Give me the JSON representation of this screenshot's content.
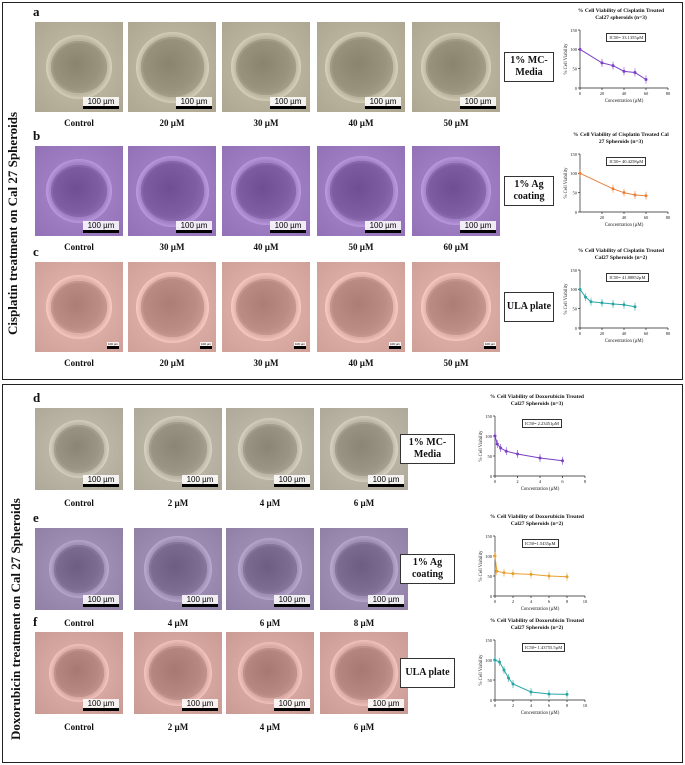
{
  "section1": {
    "title": "Cisplatin treatment on Cal 27 Spheroids",
    "rows": [
      {
        "letter": "a",
        "condition": "1% MC- Media",
        "tint": "#b7b09a",
        "labels": [
          "Control",
          "20 µM",
          "30 µM",
          "40 µM",
          "50 µM"
        ],
        "scale": "100 µm",
        "plot": {
          "title": "% Cell Viability of Cisplatin Treated Cal27 spheroids (n=3)",
          "ic50": "IC50= 33.1355µM",
          "xlabel": "Concentration (µM)",
          "ylabel": "% Cell Viability",
          "color": "#7a3fc4",
          "xticks": [
            0,
            20,
            40,
            60,
            80
          ],
          "yticks": [
            0,
            50,
            100,
            150
          ],
          "xlim": [
            0,
            80
          ],
          "ylim": [
            0,
            150
          ],
          "points": [
            [
              0,
              100
            ],
            [
              20,
              65
            ],
            [
              30,
              58
            ],
            [
              40,
              43
            ],
            [
              50,
              40
            ],
            [
              60,
              22
            ]
          ]
        }
      },
      {
        "letter": "b",
        "condition": "1% Ag coating",
        "tint": "#9c7bc0",
        "labels": [
          "Control",
          "30 µM",
          "40 µM",
          "50 µM",
          "60 µM"
        ],
        "scale": "100 µm",
        "plot": {
          "title": "% Cell Viability of Cisplatin Treated Cal 27 Spheroids (n=3)",
          "ic50": "IC50= 40.4258µM",
          "xlabel": "Concentration (µM)",
          "ylabel": "% Cell Viability",
          "color": "#e8823a",
          "xticks": [
            20,
            40,
            60,
            80
          ],
          "yticks": [
            0,
            50,
            100,
            150
          ],
          "xlim": [
            0,
            80
          ],
          "ylim": [
            0,
            150
          ],
          "points": [
            [
              0,
              100
            ],
            [
              30,
              60
            ],
            [
              40,
              50
            ],
            [
              50,
              44
            ],
            [
              60,
              42
            ]
          ]
        }
      },
      {
        "letter": "c",
        "condition": "ULA plate",
        "tint": "#d8aaa2",
        "labels": [
          "Control",
          "20 µM",
          "30 µM",
          "40 µM",
          "50 µM"
        ],
        "scale": "100 µm",
        "plot": {
          "title": "% Cell Viability of Cisplatin Treated Cal27 Spheroids (n=2)",
          "ic50": "IC50= 41.88852µM",
          "xlabel": "Concentration (µM)",
          "ylabel": "% Cell Viability",
          "color": "#2aa5a5",
          "xticks": [
            0,
            20,
            40,
            60,
            80
          ],
          "yticks": [
            0,
            50,
            100,
            150
          ],
          "xlim": [
            0,
            80
          ],
          "ylim": [
            0,
            150
          ],
          "points": [
            [
              0,
              100
            ],
            [
              5,
              80
            ],
            [
              10,
              68
            ],
            [
              20,
              65
            ],
            [
              30,
              62
            ],
            [
              40,
              60
            ],
            [
              50,
              55
            ]
          ]
        }
      }
    ]
  },
  "section2": {
    "title": "Doxorubicin treatment on Cal 27 Spheroids",
    "rows": [
      {
        "letter": "d",
        "condition": "1% MC- Media",
        "tint": "#b8b2a3",
        "labels": [
          "Control",
          "2 µM",
          "4 µM",
          "6 µM"
        ],
        "scale": "100 µm",
        "plot": {
          "title": "% Cell Viability of Doxorubicin Treated Cal27 Spheroids (n=3)",
          "ic50": "IC50= 2.23451µM",
          "xlabel": "Concentration (µM)",
          "ylabel": "% Cell Viability",
          "color": "#7a3fc4",
          "xticks": [
            0,
            2,
            4,
            6,
            8
          ],
          "yticks": [
            0,
            50,
            100,
            150
          ],
          "xlim": [
            0,
            8
          ],
          "ylim": [
            0,
            150
          ],
          "points": [
            [
              0,
              100
            ],
            [
              0.2,
              80
            ],
            [
              0.5,
              70
            ],
            [
              1,
              62
            ],
            [
              2,
              55
            ],
            [
              4,
              45
            ],
            [
              6,
              38
            ]
          ]
        }
      },
      {
        "letter": "e",
        "condition": "1% Ag coating",
        "tint": "#9a8ab0",
        "labels": [
          "Control",
          "4 µM",
          "6 µM",
          "8 µM"
        ],
        "scale": "100 µm",
        "plot": {
          "title": "% Cell Viability of Doxorubicin Treated Cal27 Spheroids (n=2)",
          "ic50": "IC50=1.5435µM",
          "xlabel": "Concentration (µM)",
          "ylabel": "% Cell Viability",
          "color": "#e8a030",
          "xticks": [
            0,
            2,
            4,
            6,
            8,
            10
          ],
          "yticks": [
            0,
            50,
            100,
            150
          ],
          "xlim": [
            0,
            10
          ],
          "ylim": [
            0,
            150
          ],
          "points": [
            [
              0,
              100
            ],
            [
              0.2,
              62
            ],
            [
              1,
              58
            ],
            [
              2,
              56
            ],
            [
              4,
              54
            ],
            [
              6,
              50
            ],
            [
              8,
              48
            ]
          ]
        }
      },
      {
        "letter": "f",
        "condition": "ULA plate",
        "tint": "#d4a49e",
        "labels": [
          "Control",
          "2 µM",
          "4 µM",
          "6 µM"
        ],
        "scale": "100 µm",
        "plot": {
          "title": "% Cell Viability of Doxorubicin Treated Cal27 Spheroids (n=2)",
          "ic50": "IC50= 1.43755.5µM",
          "xlabel": "Concentration (µM)",
          "ylabel": "% Cell Viability",
          "color": "#2aa5a5",
          "xticks": [
            0,
            2,
            4,
            6,
            8,
            10
          ],
          "yticks": [
            0,
            50,
            100,
            150
          ],
          "xlim": [
            0,
            10
          ],
          "ylim": [
            0,
            150
          ],
          "points": [
            [
              0,
              100
            ],
            [
              0.5,
              95
            ],
            [
              1,
              75
            ],
            [
              1.5,
              55
            ],
            [
              2,
              40
            ],
            [
              4,
              20
            ],
            [
              6,
              15
            ],
            [
              8,
              14
            ]
          ]
        }
      }
    ]
  }
}
